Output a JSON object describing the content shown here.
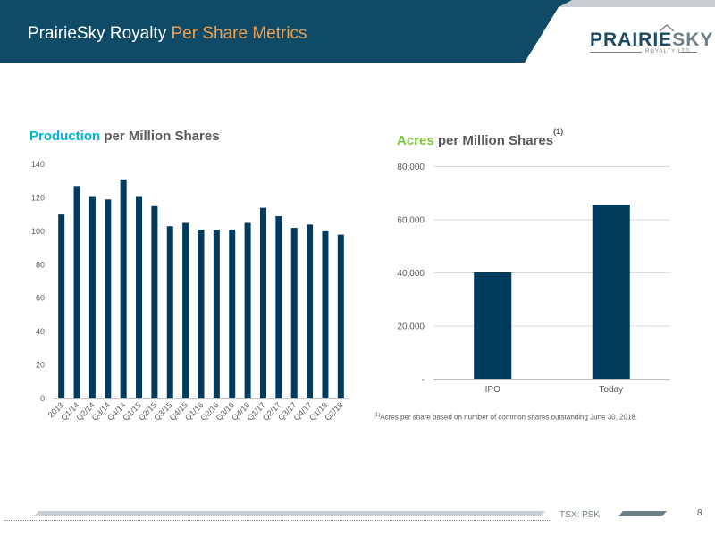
{
  "header": {
    "title_main": "PrairieSky Royalty",
    "title_accent": "Per Share Metrics",
    "logo_main": "PRAIRIE",
    "logo_accent": "SKY",
    "logo_sub": "ROYALTY LTD"
  },
  "left_chart_title": {
    "highlight": "Production",
    "rest": " per Million Shares"
  },
  "right_chart_title": {
    "highlight": "Acres",
    "rest": " per Million Shares",
    "sup": "(1)"
  },
  "footnote": {
    "sup": "(1)",
    "text": "Acres per share based on number of common shares outstanding June 30, 2018."
  },
  "footer": {
    "ticker": "TSX: PSK",
    "page": "8"
  },
  "colors": {
    "navy": "#003a5d",
    "header_band": "#0f4a66",
    "orange": "#f0a04b",
    "cyan": "#00b2d6",
    "green": "#82c341"
  },
  "chart_data": [
    {
      "type": "bar",
      "categories": [
        "2013",
        "Q1/14",
        "Q2/14",
        "Q3/14",
        "Q4/14",
        "Q1/15",
        "Q2/15",
        "Q3/15",
        "Q4/15",
        "Q1/16",
        "Q2/16",
        "Q3/16",
        "Q4/16",
        "Q1/17",
        "Q2/17",
        "Q3/17",
        "Q4/17",
        "Q1/18",
        "Q2/18"
      ],
      "values": [
        110,
        127,
        121,
        119,
        131,
        121,
        115,
        103,
        105,
        101,
        101,
        101,
        105,
        114,
        109,
        102,
        104,
        100,
        98
      ],
      "yticks": [
        "0",
        "20",
        "40",
        "60",
        "80",
        "100",
        "120",
        "140"
      ],
      "ylim": [
        0,
        140
      ],
      "grid": false
    },
    {
      "type": "bar",
      "categories": [
        "IPO",
        "Today"
      ],
      "values": [
        40000,
        65500
      ],
      "yticks": [
        "-",
        "20,000",
        "40,000",
        "60,000",
        "80,000"
      ],
      "ylim": [
        0,
        80000
      ],
      "grid": true
    }
  ]
}
